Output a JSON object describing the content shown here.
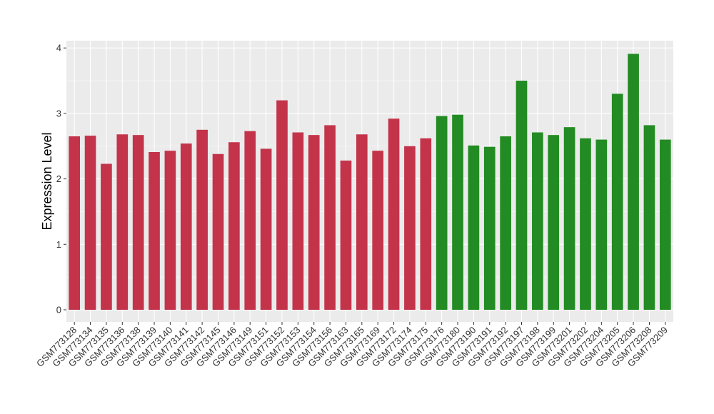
{
  "chart_data": {
    "type": "bar",
    "title": "",
    "xlabel": "",
    "ylabel": "Expression Level",
    "ylim": [
      0,
      4.1
    ],
    "yticks": [
      0,
      1,
      2,
      3,
      4
    ],
    "grid": true,
    "categories": [
      "GSM773128",
      "GSM773134",
      "GSM773135",
      "GSM773136",
      "GSM773138",
      "GSM773139",
      "GSM773140",
      "GSM773141",
      "GSM773142",
      "GSM773145",
      "GSM773146",
      "GSM773149",
      "GSM773151",
      "GSM773152",
      "GSM773153",
      "GSM773154",
      "GSM773156",
      "GSM773163",
      "GSM773165",
      "GSM773169",
      "GSM773172",
      "GSM773174",
      "GSM773175",
      "GSM773176",
      "GSM773180",
      "GSM773190",
      "GSM773191",
      "GSM773192",
      "GSM773197",
      "GSM773198",
      "GSM773199",
      "GSM773201",
      "GSM773202",
      "GSM773204",
      "GSM773205",
      "GSM773206",
      "GSM773208",
      "GSM773209"
    ],
    "values": [
      2.65,
      2.66,
      2.23,
      2.68,
      2.67,
      2.41,
      2.43,
      2.54,
      2.75,
      2.38,
      2.56,
      2.73,
      2.46,
      3.2,
      2.71,
      2.67,
      2.82,
      2.28,
      2.68,
      2.43,
      2.92,
      2.5,
      2.62,
      2.96,
      2.98,
      2.51,
      2.49,
      2.65,
      3.5,
      2.71,
      2.67,
      2.79,
      2.62,
      2.6,
      3.3,
      3.91,
      2.82,
      2.6
    ],
    "groups": [
      0,
      0,
      0,
      0,
      0,
      0,
      0,
      0,
      0,
      0,
      0,
      0,
      0,
      0,
      0,
      0,
      0,
      0,
      0,
      0,
      0,
      0,
      0,
      1,
      1,
      1,
      1,
      1,
      1,
      1,
      1,
      1,
      1,
      1,
      1,
      1,
      1,
      1
    ],
    "group_colors": [
      "#c3344b",
      "#238b23"
    ],
    "panel_background": "#ebebeb",
    "grid_color": "#ffffff"
  }
}
